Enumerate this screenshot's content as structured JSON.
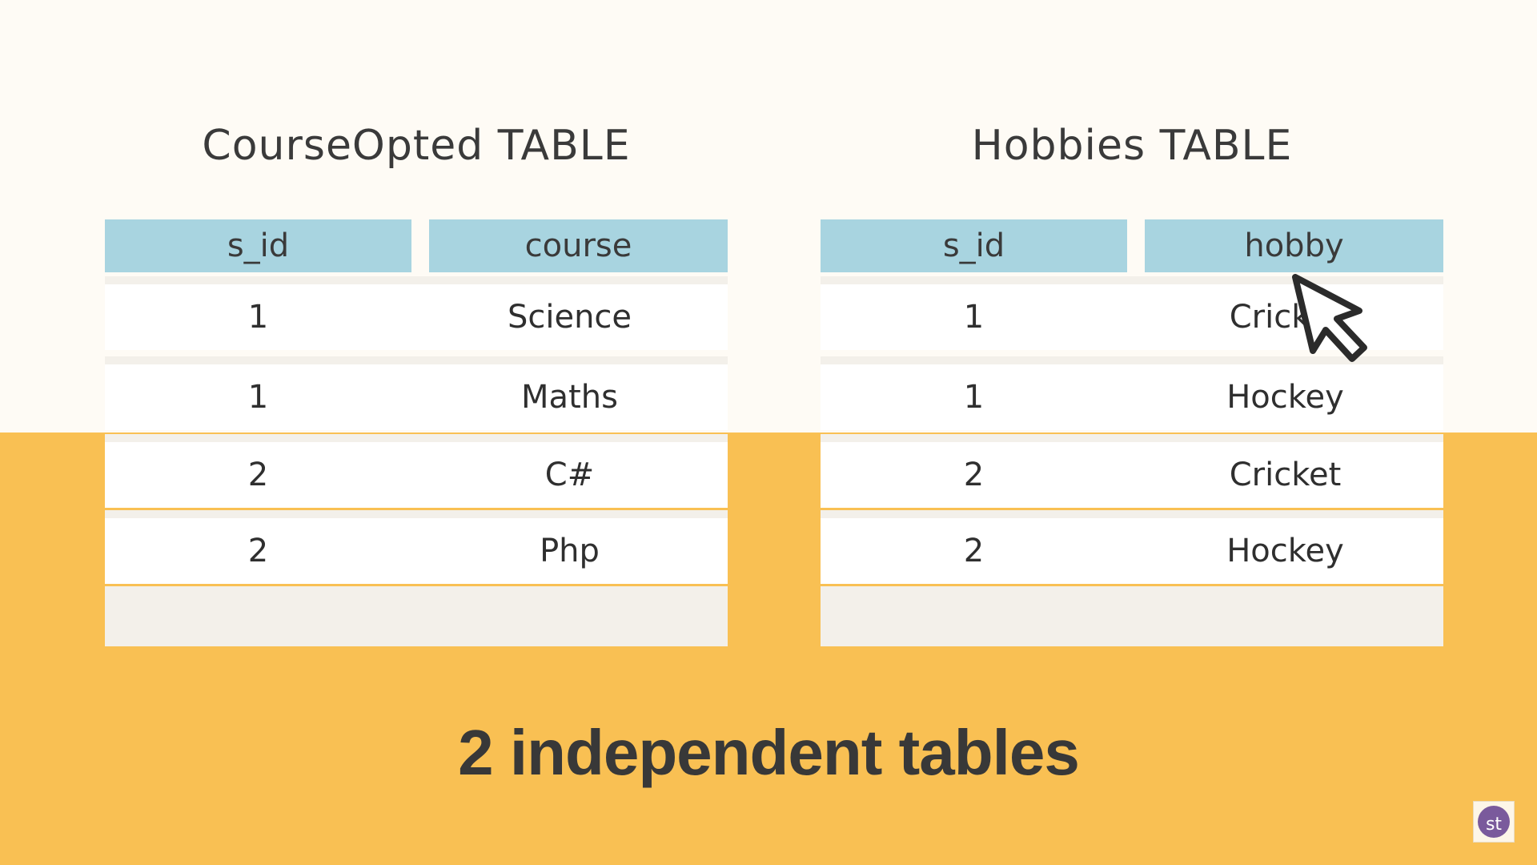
{
  "colors": {
    "background_top": "#fefbf5",
    "background_bottom": "#f9c053",
    "header_fill": "#a8d4e0",
    "row_fill": "#ffffff",
    "text": "#3a3a3a"
  },
  "tables": [
    {
      "title": "CourseOpted TABLE",
      "headers": [
        "s_id",
        "course"
      ],
      "rows": [
        [
          "1",
          "Science"
        ],
        [
          "1",
          "Maths"
        ],
        [
          "2",
          "C#"
        ],
        [
          "2",
          "Php"
        ]
      ]
    },
    {
      "title": "Hobbies TABLE",
      "headers": [
        "s_id",
        "hobby"
      ],
      "rows": [
        [
          "1",
          "Cricket"
        ],
        [
          "1",
          "Hockey"
        ],
        [
          "2",
          "Cricket"
        ],
        [
          "2",
          "Hockey"
        ]
      ]
    }
  ],
  "caption": "2 independent tables",
  "logo": {
    "text": "st",
    "icon": "studytonight-logo-icon"
  },
  "cursor": {
    "icon": "mouse-pointer-icon"
  }
}
